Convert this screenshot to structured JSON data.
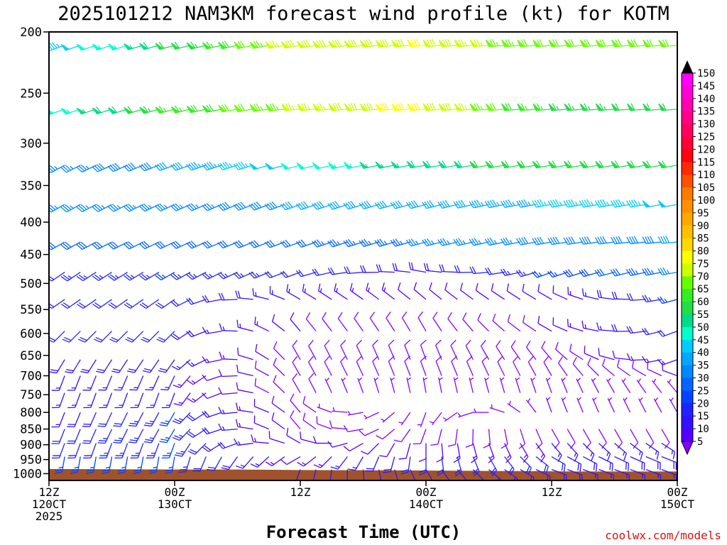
{
  "chart_data": {
    "type": "wind-barb-time-height",
    "title": "2025101212 NAM3KM forecast wind profile (kt) for KOTM",
    "xlabel": "Forecast Time (UTC)",
    "ylabel": "",
    "credit": "coolwx.com/models",
    "y_axis": {
      "scale": "log-pressure",
      "range": [
        1025,
        200
      ],
      "ticks": [
        "200",
        "250",
        "300",
        "350",
        "400",
        "450",
        "500",
        "550",
        "600",
        "650",
        "700",
        "750",
        "800",
        "850",
        "900",
        "950",
        "1000"
      ]
    },
    "x_axis": {
      "range_hours": [
        0,
        60
      ],
      "ticks": [
        {
          "hour": 0,
          "lines": [
            "12Z",
            "120CT",
            "2025"
          ]
        },
        {
          "hour": 12,
          "lines": [
            "00Z",
            "130CT"
          ]
        },
        {
          "hour": 24,
          "lines": [
            "12Z"
          ]
        },
        {
          "hour": 36,
          "lines": [
            "00Z",
            "140CT"
          ]
        },
        {
          "hour": 48,
          "lines": [
            "12Z"
          ]
        },
        {
          "hour": 60,
          "lines": [
            "00Z",
            "150CT"
          ]
        }
      ]
    },
    "colorbar": {
      "unit": "kt",
      "labels": [
        "150",
        "145",
        "140",
        "135",
        "130",
        "125",
        "120",
        "115",
        "110",
        "105",
        "100",
        "95",
        "90",
        "85",
        "80",
        "75",
        "70",
        "65",
        "60",
        "55",
        "50",
        "45",
        "40",
        "35",
        "30",
        "25",
        "20",
        "15",
        "10",
        "5"
      ],
      "colors": [
        "#ff00ff",
        "#ff00d9",
        "#ff00b0",
        "#ff0088",
        "#ff0060",
        "#ff0038",
        "#ff0010",
        "#ff2a00",
        "#ff5200",
        "#ff7a00",
        "#ff9000",
        "#ffa800",
        "#ffc000",
        "#ffd800",
        "#ffff00",
        "#ccff00",
        "#66ff00",
        "#33ee22",
        "#22dd44",
        "#00dd88",
        "#00ffcc",
        "#00ccff",
        "#00a8ff",
        "#0088ff",
        "#0066ff",
        "#0044ff",
        "#2222ff",
        "#3311ff",
        "#5500ff",
        "#8800ff"
      ]
    },
    "ground": {
      "color": "#a0522d",
      "surface_pressure_hpa": [
        {
          "hour": 0,
          "p": 983
        },
        {
          "hour": 6,
          "p": 984
        },
        {
          "hour": 12,
          "p": 985
        },
        {
          "hour": 18,
          "p": 985
        },
        {
          "hour": 24,
          "p": 987
        },
        {
          "hour": 32,
          "p": 988
        },
        {
          "hour": 42,
          "p": 990
        },
        {
          "hour": 50,
          "p": 992
        },
        {
          "hour": 60,
          "p": 992
        }
      ]
    },
    "profile": {
      "levels_hpa": [
        210,
        265,
        325,
        375,
        430,
        480,
        530,
        595,
        660,
        700,
        745,
        800,
        850,
        895,
        940,
        985
      ],
      "keyframe_hours": [
        0,
        12,
        24,
        36,
        48,
        60
      ],
      "speed_kt": [
        [
          45,
          60,
          78,
          80,
          70,
          70
        ],
        [
          50,
          65,
          75,
          82,
          65,
          60
        ],
        [
          35,
          40,
          50,
          58,
          62,
          60
        ],
        [
          35,
          35,
          40,
          40,
          45,
          48
        ],
        [
          30,
          32,
          32,
          35,
          38,
          40
        ],
        [
          22,
          25,
          22,
          18,
          25,
          35
        ],
        [
          22,
          22,
          15,
          12,
          10,
          25
        ],
        [
          20,
          20,
          10,
          8,
          10,
          22
        ],
        [
          20,
          18,
          8,
          8,
          8,
          15
        ],
        [
          15,
          15,
          8,
          8,
          8,
          10
        ],
        [
          15,
          15,
          8,
          5,
          5,
          5
        ],
        [
          15,
          25,
          8,
          5,
          5,
          5
        ],
        [
          20,
          25,
          8,
          8,
          8,
          8
        ],
        [
          20,
          25,
          10,
          12,
          15,
          15
        ],
        [
          25,
          25,
          12,
          22,
          20,
          18
        ],
        [
          28,
          25,
          18,
          15,
          18,
          15
        ]
      ],
      "direction_deg": [
        [
          250,
          255,
          260,
          265,
          265,
          265
        ],
        [
          250,
          255,
          265,
          265,
          265,
          265
        ],
        [
          240,
          250,
          255,
          260,
          260,
          260
        ],
        [
          240,
          245,
          250,
          255,
          260,
          260
        ],
        [
          240,
          245,
          250,
          255,
          260,
          265
        ],
        [
          235,
          240,
          250,
          280,
          250,
          260
        ],
        [
          235,
          235,
          300,
          310,
          300,
          255
        ],
        [
          225,
          225,
          320,
          330,
          300,
          250
        ],
        [
          210,
          215,
          330,
          340,
          320,
          250
        ],
        [
          200,
          205,
          330,
          340,
          330,
          290
        ],
        [
          200,
          200,
          330,
          350,
          340,
          320
        ],
        [
          200,
          210,
          320,
          200,
          340,
          330
        ],
        [
          200,
          210,
          320,
          200,
          150,
          150
        ],
        [
          200,
          200,
          300,
          180,
          140,
          120
        ],
        [
          190,
          190,
          240,
          180,
          120,
          110
        ],
        [
          180,
          175,
          200,
          150,
          110,
          110
        ]
      ]
    }
  }
}
